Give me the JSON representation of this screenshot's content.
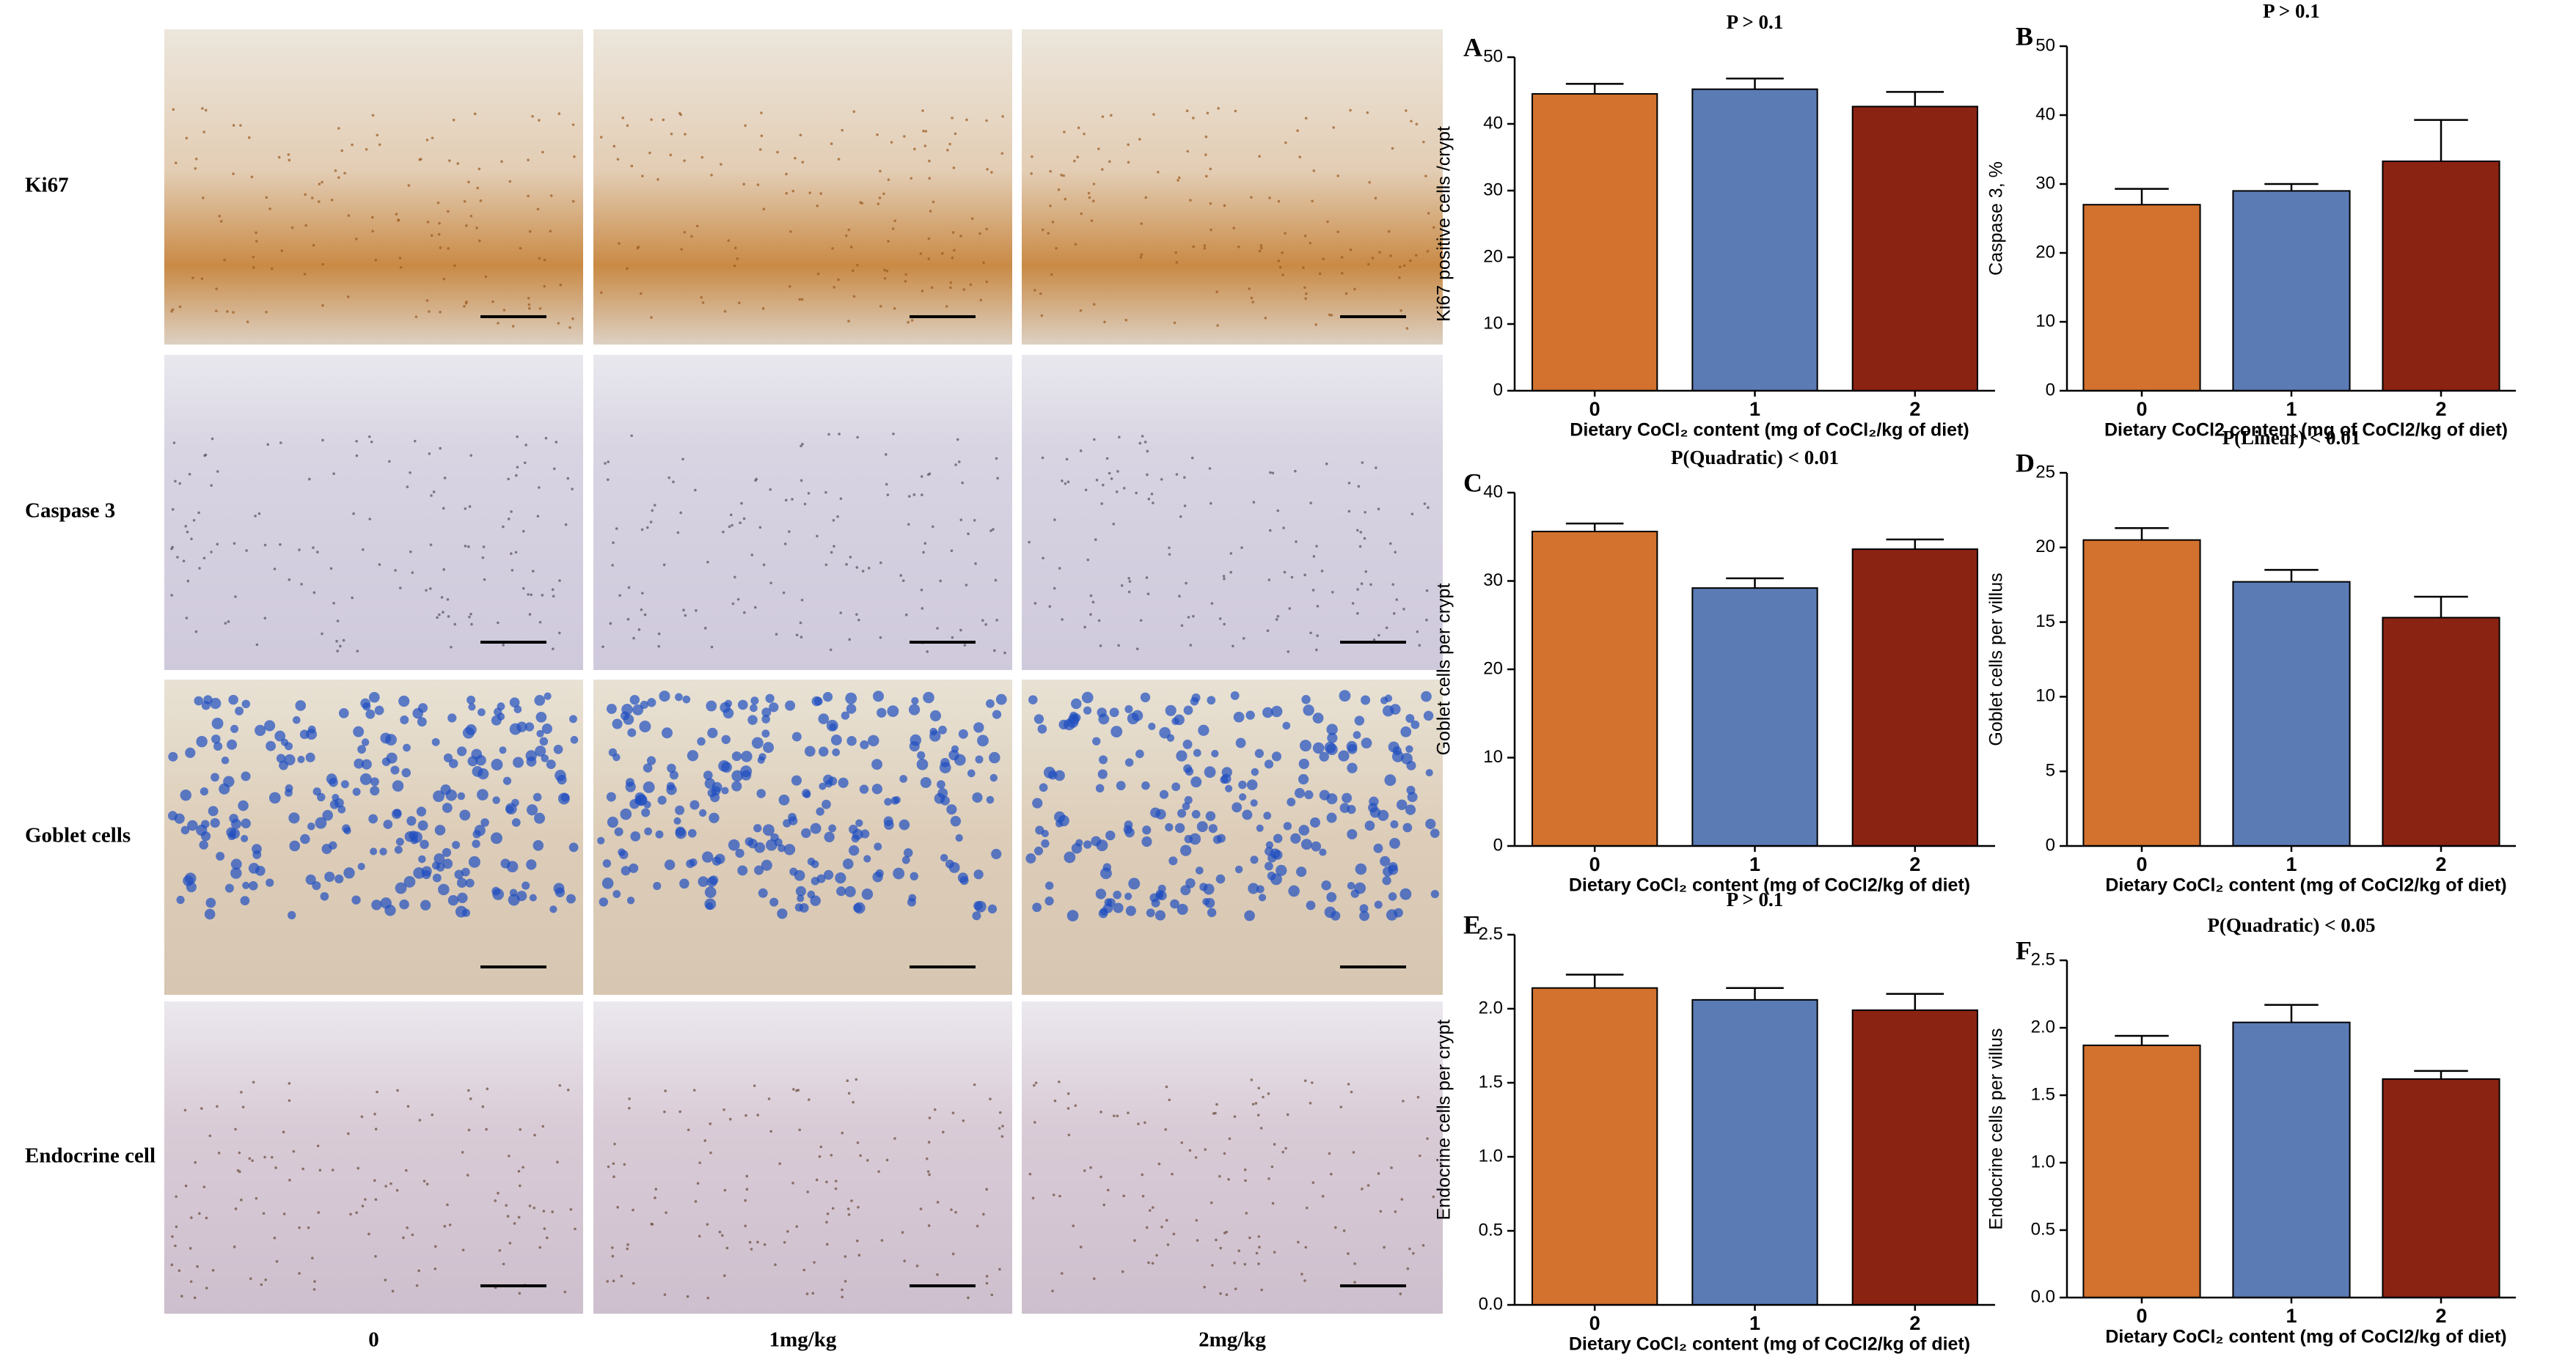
{
  "micrographs": {
    "rows": [
      "Ki67",
      "Caspase 3",
      "Goblet cells",
      "Endocrine cell"
    ],
    "columns": [
      "0",
      "1mg/kg",
      "2mg/kg"
    ]
  },
  "chart_data": [
    {
      "type": "bar",
      "panel": "A",
      "title": "P > 0.1",
      "y_label": "Ki67 positive cells /crypt",
      "x_label": "Dietary CoCl₂ content  (mg of CoCl₂/kg of diet)",
      "categories": [
        "0",
        "1",
        "2"
      ],
      "values": [
        44.5,
        45.2,
        42.6
      ],
      "errors": [
        1.5,
        1.6,
        2.2
      ],
      "colors": [
        "#d2722e",
        "#5b7bb5",
        "#8b2313"
      ],
      "ylim": [
        0,
        50
      ],
      "yticks": [
        0,
        10,
        20,
        30,
        40,
        50
      ]
    },
    {
      "type": "bar",
      "panel": "B",
      "title": "P > 0.1",
      "y_label": "Caspase 3, %",
      "x_label": "Dietary CoCl2 content  (mg of CoCl2/kg of diet)",
      "categories": [
        "0",
        "1",
        "2"
      ],
      "values": [
        27,
        29,
        33.3
      ],
      "errors": [
        2.3,
        1.0,
        6.0
      ],
      "colors": [
        "#d2722e",
        "#5b7bb5",
        "#8b2313"
      ],
      "ylim": [
        0,
        50
      ],
      "yticks": [
        0,
        10,
        20,
        30,
        40,
        50
      ]
    },
    {
      "type": "bar",
      "panel": "C",
      "title": "P(Quadratic) < 0.01",
      "y_label": "Goblet cells per crypt",
      "x_label": "Dietary CoCl₂ content  (mg of CoCl2/kg of diet)",
      "categories": [
        "0",
        "1",
        "2"
      ],
      "values": [
        35.6,
        29.2,
        33.6
      ],
      "errors": [
        0.9,
        1.1,
        1.1
      ],
      "colors": [
        "#d2722e",
        "#5b7bb5",
        "#8b2313"
      ],
      "ylim": [
        0,
        40
      ],
      "yticks": [
        0,
        10,
        20,
        30,
        40
      ]
    },
    {
      "type": "bar",
      "panel": "D",
      "title": "P(Linear) < 0.01",
      "y_label": "Goblet cells per villus",
      "x_label": "Dietary CoCl₂ content  (mg of CoCl2/kg of diet)",
      "categories": [
        "0",
        "1",
        "2"
      ],
      "values": [
        20.5,
        17.7,
        15.3
      ],
      "errors": [
        0.8,
        0.8,
        1.4
      ],
      "colors": [
        "#d2722e",
        "#5b7bb5",
        "#8b2313"
      ],
      "ylim": [
        0,
        25
      ],
      "yticks": [
        0,
        5,
        10,
        15,
        20,
        25
      ]
    },
    {
      "type": "bar",
      "panel": "E",
      "title": "P > 0.1",
      "y_label": "Endocrine cells per crypt",
      "x_label": "Dietary CoCl₂ content  (mg of CoCl2/kg of diet)",
      "categories": [
        "0",
        "1",
        "2"
      ],
      "values": [
        2.14,
        2.06,
        1.99
      ],
      "errors": [
        0.09,
        0.08,
        0.11
      ],
      "colors": [
        "#d2722e",
        "#5b7bb5",
        "#8b2313"
      ],
      "ylim": [
        0,
        2.5
      ],
      "yticks": [
        {
          "value": 0,
          "label": "0.0"
        },
        0.5,
        {
          "value": 1,
          "label": "1.0"
        },
        1.5,
        {
          "value": 2,
          "label": "2.0"
        },
        2.5
      ]
    },
    {
      "type": "bar",
      "panel": "F",
      "title": "P(Quadratic) < 0.05",
      "y_label": "Endocrine cells per villus",
      "x_label": "Dietary CoCl₂ content  (mg of CoCl2/kg of diet)",
      "categories": [
        "0",
        "1",
        "2"
      ],
      "values": [
        1.87,
        2.04,
        1.62
      ],
      "errors": [
        0.07,
        0.13,
        0.06
      ],
      "colors": [
        "#d2722e",
        "#5b7bb5",
        "#8b2313"
      ],
      "ylim": [
        0,
        2.5
      ],
      "yticks": [
        {
          "value": 0,
          "label": "0.0"
        },
        0.5,
        {
          "value": 1,
          "label": "1.0"
        },
        1.5,
        {
          "value": 2,
          "label": "2.0"
        },
        2.5
      ]
    }
  ]
}
